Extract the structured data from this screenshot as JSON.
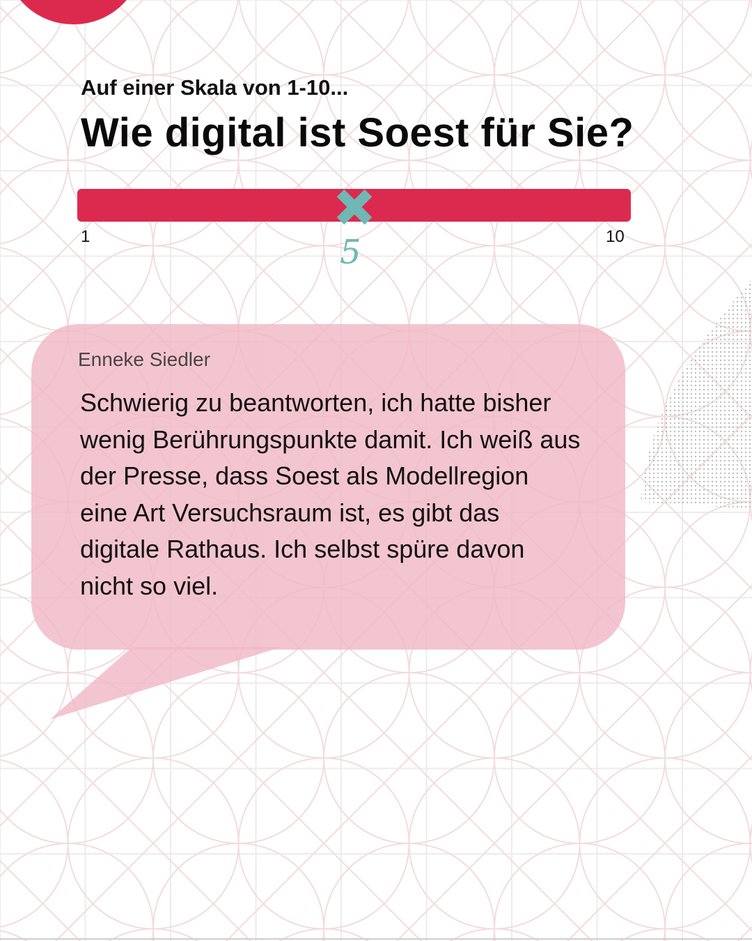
{
  "header": {
    "subtitle": "Auf einer Skala von 1-10...",
    "headline": "Wie digital ist Soest für Sie?"
  },
  "scale": {
    "min_label": "1",
    "max_label": "10",
    "min": 1,
    "max": 10,
    "value": 5,
    "value_label": "5",
    "marker_icon": "cross-icon",
    "track_color": "#dc2a4f",
    "marker_color": "#6fb8b4"
  },
  "quote": {
    "author": "Enneke Siedler",
    "text": "Schwierig zu beantworten, ich hatte bisher wenig Berührungspunkte damit. Ich weiß aus der Presse, dass Soest als Modellregion eine Art Versuchsraum ist, es gibt das digitale Rathaus. Ich selbst spüre davon nicht so viel.",
    "bubble_color": "#f0b8c6"
  },
  "colors": {
    "accent": "#dc2a4f",
    "pattern": "#f2dcdf",
    "grid": "#ececec"
  }
}
